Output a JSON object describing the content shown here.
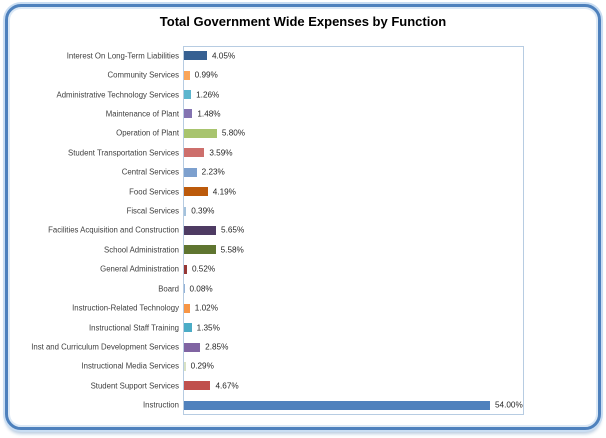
{
  "window": {
    "background_color": "#ffffff",
    "frame_border_color": "#4E81BD",
    "frame_outer_ring_color": "#C9DDF2",
    "plot_border_color": "#B7CCE2"
  },
  "chart_data": {
    "type": "bar",
    "orientation": "horizontal",
    "title": "Total Government Wide Expenses by Function",
    "order": "top-to-bottom",
    "categories": [
      "Interest On Long-Term Liabilities",
      "Community Services",
      "Administrative Technology Services",
      "Maintenance of Plant",
      "Operation of Plant",
      "Student Transportation Services",
      "Central Services",
      "Food Services",
      "Fiscal Services",
      "Facilities Acquisition and Construction",
      "School Administration",
      "General Administration",
      "Board",
      "Instruction-Related Technology",
      "Instructional Staff Training",
      "Inst and Curriculum Development Services",
      "Instructional Media Services",
      "Student Support Services",
      "Instruction"
    ],
    "values": [
      4.05,
      0.99,
      1.26,
      1.48,
      5.8,
      3.59,
      2.23,
      4.19,
      0.39,
      5.65,
      5.58,
      0.52,
      0.08,
      1.02,
      1.35,
      2.85,
      0.29,
      4.67,
      54.0
    ],
    "value_labels": [
      "4.05%",
      "0.99%",
      "1.26%",
      "1.48%",
      "5.80%",
      "3.59%",
      "2.23%",
      "4.19%",
      "0.39%",
      "5.65%",
      "5.58%",
      "0.52%",
      "0.08%",
      "1.02%",
      "1.35%",
      "2.85%",
      "0.29%",
      "4.67%",
      "54.00%"
    ],
    "bar_colors": [
      "#366092",
      "#FAA558",
      "#5BB5CE",
      "#8373B1",
      "#A8C46E",
      "#CD6F6C",
      "#7DA0CE",
      "#BC5A0B",
      "#A4C2DC",
      "#4E3B63",
      "#5F7530",
      "#953735",
      "#95B3D7",
      "#F79646",
      "#4BACC6",
      "#8064A2",
      "#D9E2C5",
      "#C0504D",
      "#4F81BD"
    ],
    "xlim": [
      0,
      60
    ],
    "grid": false,
    "legend": false,
    "value_label_position": "outside-end"
  }
}
